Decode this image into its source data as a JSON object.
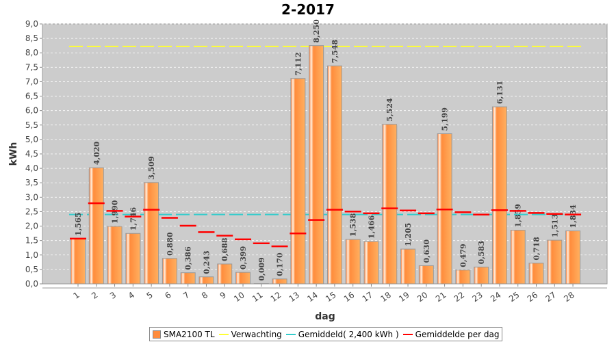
{
  "chart_data": {
    "type": "bar",
    "title": "2-2017",
    "xlabel": "dag",
    "ylabel": "kWh",
    "ylim": [
      0,
      9
    ],
    "yticks": [
      "0,0",
      "0,5",
      "1,0",
      "1,5",
      "2,0",
      "2,5",
      "3,0",
      "3,5",
      "4,0",
      "4,5",
      "5,0",
      "5,5",
      "6,0",
      "6,5",
      "7,0",
      "7,5",
      "8,0",
      "8,5",
      "9,0"
    ],
    "categories": [
      "1",
      "2",
      "3",
      "4",
      "5",
      "6",
      "7",
      "8",
      "9",
      "10",
      "11",
      "12",
      "13",
      "14",
      "15",
      "16",
      "17",
      "18",
      "19",
      "20",
      "21",
      "22",
      "23",
      "24",
      "25",
      "26",
      "27",
      "28"
    ],
    "series": [
      {
        "name": "SMA2100 TL",
        "color": "#ff8c3c",
        "values": [
          1.565,
          4.02,
          1.99,
          1.746,
          3.509,
          0.88,
          0.386,
          0.243,
          0.688,
          0.399,
          0.009,
          0.17,
          7.112,
          8.25,
          7.548,
          1.538,
          1.466,
          5.524,
          1.205,
          0.63,
          5.199,
          0.479,
          0.583,
          6.131,
          1.859,
          0.718,
          1.513,
          1.834
        ]
      }
    ],
    "value_labels": [
      "1,565",
      "4,020",
      "1,990",
      "1,746",
      "3,509",
      "0,880",
      "0,386",
      "0,243",
      "0,688",
      "0,399",
      "0,009",
      "0,170",
      "7,112",
      "8,250",
      "7,548",
      "1,538",
      "1,466",
      "5,524",
      "1,205",
      "0,630",
      "5,199",
      "0,479",
      "0,583",
      "6,131",
      "1,859",
      "0,718",
      "1,513",
      "1,834"
    ],
    "expectation": {
      "name": "Verwachting",
      "value": 8.22,
      "color": "#ffff33"
    },
    "average": {
      "name": "Gemiddeld( 2,400 kWh )",
      "value": 2.4,
      "color": "#33cccc"
    },
    "avg_per_day": {
      "name": "Gemiddelde per dag",
      "color": "#ff0000"
    },
    "legend": "bottom",
    "grid": true
  }
}
